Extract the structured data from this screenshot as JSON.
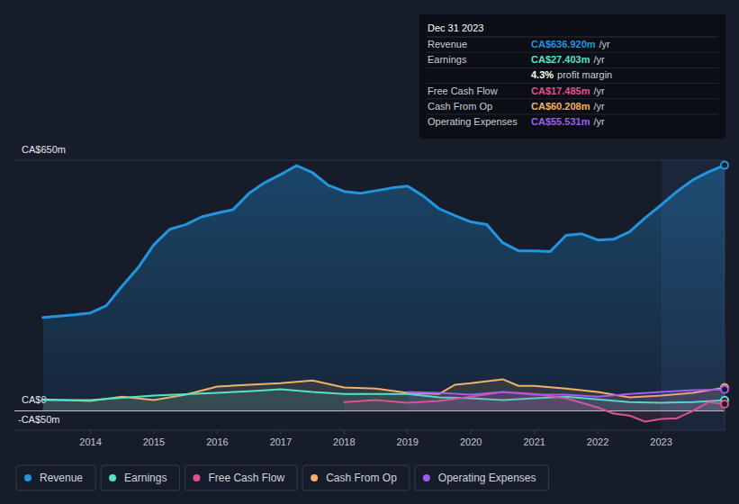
{
  "chart_data": {
    "type": "line",
    "xlim": [
      2012.8,
      2024.0
    ],
    "xticks": [
      2014,
      2015,
      2016,
      2017,
      2018,
      2019,
      2020,
      2021,
      2022,
      2023
    ],
    "ylim": [
      -50,
      650
    ],
    "yticks": [
      {
        "value": -50,
        "label": "-CA$50m"
      },
      {
        "value": 0,
        "label": "CA$0"
      },
      {
        "value": 650,
        "label": "CA$650m"
      }
    ],
    "grid": true,
    "series": [
      {
        "name": "Revenue",
        "color": "#2394df",
        "x": [
          2013.25,
          2013.75,
          2014.0,
          2014.25,
          2014.5,
          2014.75,
          2015.0,
          2015.25,
          2015.5,
          2015.75,
          2016.0,
          2016.25,
          2016.5,
          2016.75,
          2017.0,
          2017.25,
          2017.5,
          2017.75,
          2018.0,
          2018.25,
          2018.5,
          2018.75,
          2019.0,
          2019.25,
          2019.5,
          2019.75,
          2020.0,
          2020.25,
          2020.5,
          2020.75,
          2021.0,
          2021.25,
          2021.5,
          2021.75,
          2022.0,
          2022.25,
          2022.5,
          2022.75,
          2023.0,
          2023.25,
          2023.5,
          2023.75,
          2024.0
        ],
        "values": [
          242,
          249,
          254,
          273,
          324,
          371,
          431,
          471,
          483,
          503,
          513,
          522,
          564,
          592,
          613,
          636,
          618,
          585,
          569,
          564,
          571,
          578,
          583,
          557,
          524,
          506,
          490,
          483,
          436,
          415,
          415,
          413,
          455,
          459,
          443,
          445,
          464,
          501,
          534,
          569,
          599,
          620,
          636.92
        ]
      },
      {
        "name": "Earnings",
        "color": "#55e2c8",
        "x": [
          2013.25,
          2014.0,
          2015.0,
          2016.0,
          2016.5,
          2017.0,
          2017.5,
          2018.0,
          2019.0,
          2019.5,
          2020.0,
          2020.5,
          2021.0,
          2021.5,
          2022.0,
          2022.5,
          2023.0,
          2023.5,
          2024.0
        ],
        "values": [
          28,
          28,
          40,
          47,
          51,
          56,
          49,
          44,
          44,
          35,
          33,
          28,
          33,
          37,
          30,
          23,
          21,
          23,
          27.403
        ]
      },
      {
        "name": "Free Cash Flow",
        "color": "#e0528e",
        "x": [
          2018.0,
          2018.5,
          2019.0,
          2019.5,
          2020.0,
          2020.5,
          2021.0,
          2021.5,
          2022.0,
          2022.25,
          2022.5,
          2022.75,
          2023.0,
          2023.25,
          2023.5,
          2023.75,
          2024.0
        ],
        "values": [
          23,
          28,
          21,
          26,
          37,
          49,
          44,
          33,
          9,
          -7,
          -12,
          -28,
          -21,
          -19,
          0,
          23,
          17.485
        ]
      },
      {
        "name": "Cash From Op",
        "color": "#f0b168",
        "x": [
          2013.25,
          2014.0,
          2014.5,
          2015.0,
          2015.5,
          2016.0,
          2016.5,
          2017.0,
          2017.5,
          2018.0,
          2018.5,
          2019.0,
          2019.5,
          2019.75,
          2020.0,
          2020.5,
          2020.75,
          2021.0,
          2021.5,
          2022.0,
          2022.5,
          2023.0,
          2023.5,
          2024.0
        ],
        "values": [
          30,
          26,
          37,
          28,
          42,
          63,
          68,
          72,
          79,
          61,
          58,
          47,
          44,
          68,
          72,
          82,
          65,
          65,
          58,
          49,
          35,
          40,
          47,
          60.208
        ]
      },
      {
        "name": "Operating Expenses",
        "color": "#a05cf0",
        "x": [
          2019.0,
          2019.5,
          2020.0,
          2020.5,
          2021.0,
          2021.5,
          2022.0,
          2022.5,
          2023.0,
          2023.5,
          2024.0
        ],
        "values": [
          49,
          47,
          42,
          49,
          42,
          42,
          37,
          44,
          49,
          54,
          55.531
        ]
      }
    ],
    "tooltip": {
      "date": "Dec 31 2023",
      "rows": [
        {
          "label": "Revenue",
          "value": "CA$636.920m",
          "unit": "/yr",
          "color": "#2394df"
        },
        {
          "label": "Earnings",
          "value": "CA$27.403m",
          "unit": "/yr",
          "color": "#55e2c8"
        },
        {
          "value": "4.3%",
          "unit": "profit margin",
          "color": "#ffffff"
        },
        {
          "label": "Free Cash Flow",
          "value": "CA$17.485m",
          "unit": "/yr",
          "color": "#e0528e"
        },
        {
          "label": "Cash From Op",
          "value": "CA$60.208m",
          "unit": "/yr",
          "color": "#f0b168"
        },
        {
          "label": "Operating Expenses",
          "value": "CA$55.531m",
          "unit": "/yr",
          "color": "#a05cf0"
        }
      ]
    }
  }
}
